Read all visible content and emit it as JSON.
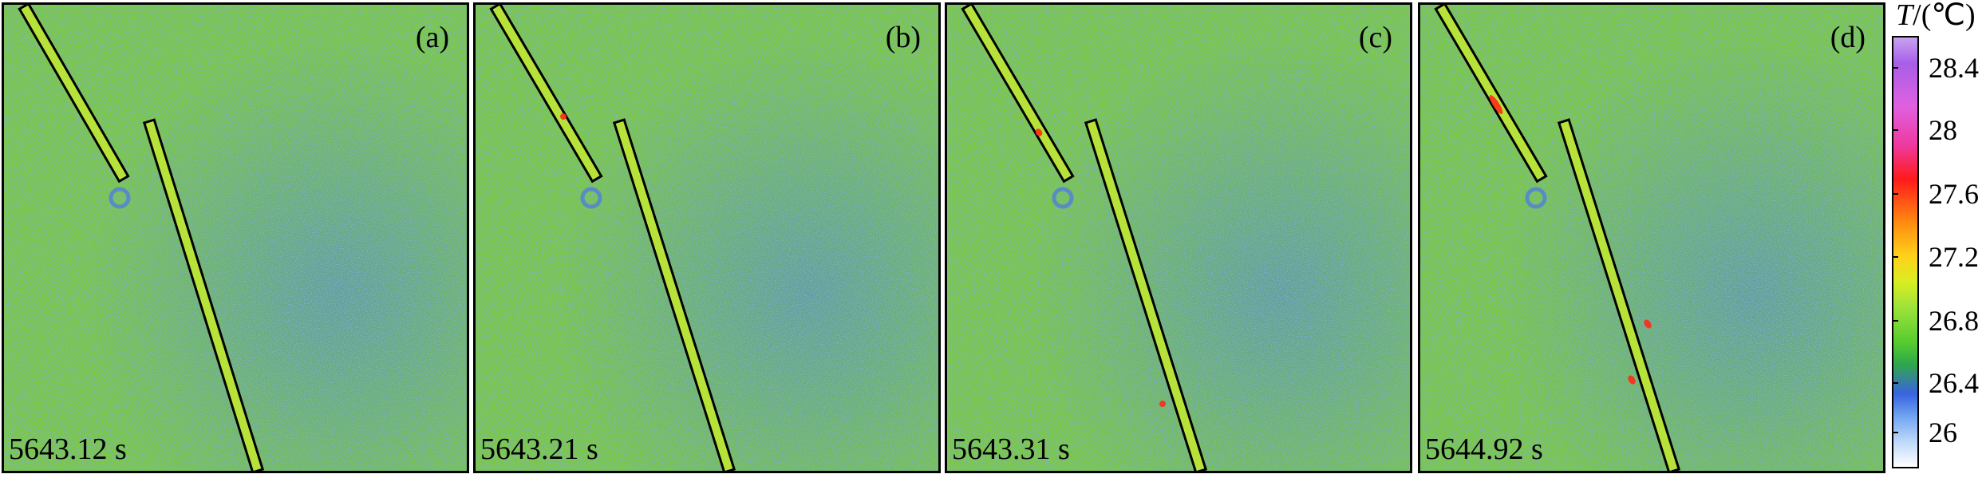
{
  "panels": [
    {
      "tag": "(a)",
      "time": "5643.12 s"
    },
    {
      "tag": "(b)",
      "time": "5643.21 s"
    },
    {
      "tag": "(c)",
      "time": "5643.31 s"
    },
    {
      "tag": "(d)",
      "time": "5644.92 s"
    }
  ],
  "colorbar": {
    "symbol": "T",
    "unit": "/(℃)",
    "ticks": [
      "28.4",
      "28",
      "27.6",
      "27.2",
      "26.8",
      "26.4",
      "26"
    ]
  },
  "colors": {
    "background_field": "#79c93a",
    "cool_region": "#4f7fd8",
    "warm_hotspot": "#ff2a1a",
    "strip_fill": "#b7e23a",
    "outline": "#000000"
  }
}
